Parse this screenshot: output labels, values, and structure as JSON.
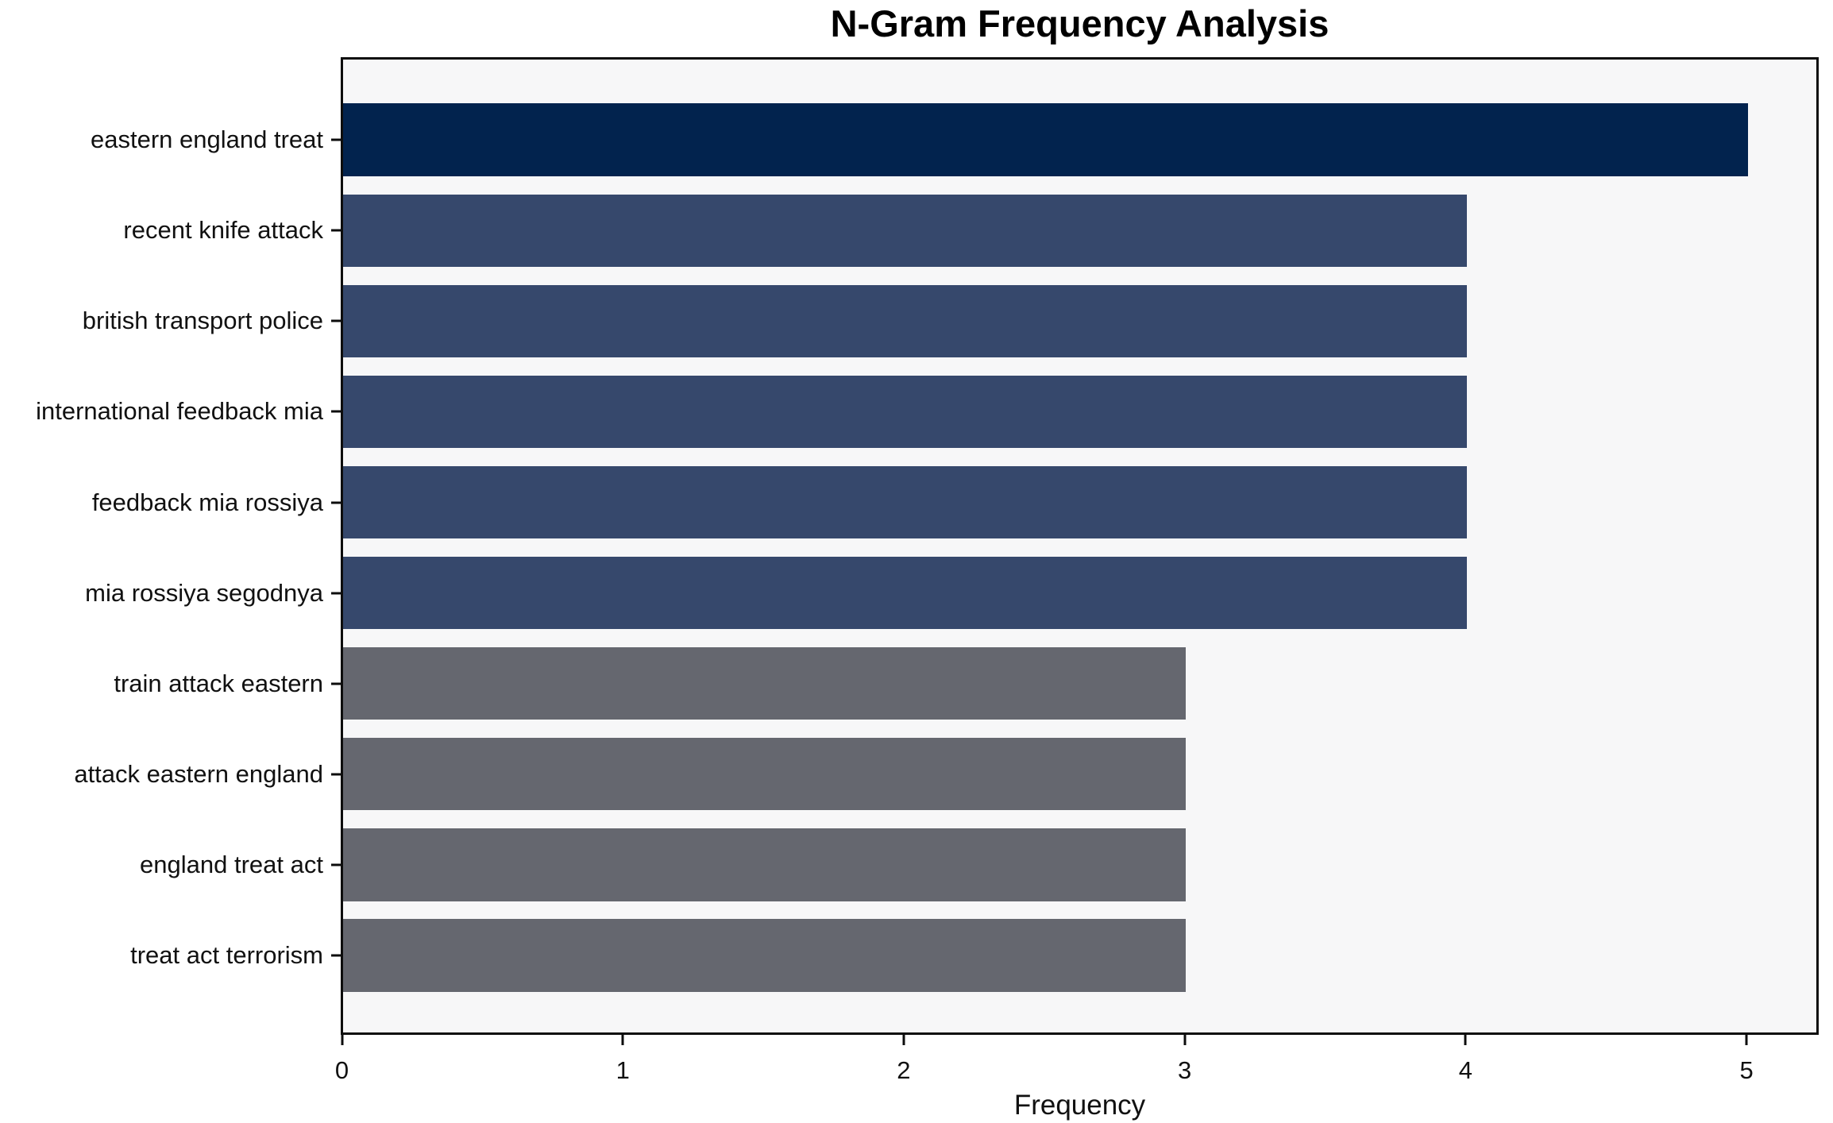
{
  "title": "N-Gram Frequency Analysis",
  "chart_data": {
    "type": "bar",
    "orientation": "horizontal",
    "title": "N-Gram Frequency Analysis",
    "xlabel": "Frequency",
    "ylabel": "",
    "categories": [
      "eastern england treat",
      "recent knife attack",
      "british transport police",
      "international feedback mia",
      "feedback mia rossiya",
      "mia rossiya segodnya",
      "train attack eastern",
      "attack eastern england",
      "england treat act",
      "treat act terrorism"
    ],
    "values": [
      5,
      4,
      4,
      4,
      4,
      4,
      3,
      3,
      3,
      3
    ],
    "bar_colors": [
      "#02234e",
      "#36486c",
      "#36486c",
      "#36486c",
      "#36486c",
      "#36486c",
      "#65676f",
      "#65676f",
      "#65676f",
      "#65676f"
    ],
    "xticks": [
      0,
      1,
      2,
      3,
      4,
      5
    ],
    "xlim": [
      0,
      5.25
    ],
    "grid": false,
    "legend": null,
    "plot_background": "#f7f7f8",
    "figure_background": "#ffffff",
    "spine_color": "#0d0d0d",
    "text_color": "#111111"
  }
}
